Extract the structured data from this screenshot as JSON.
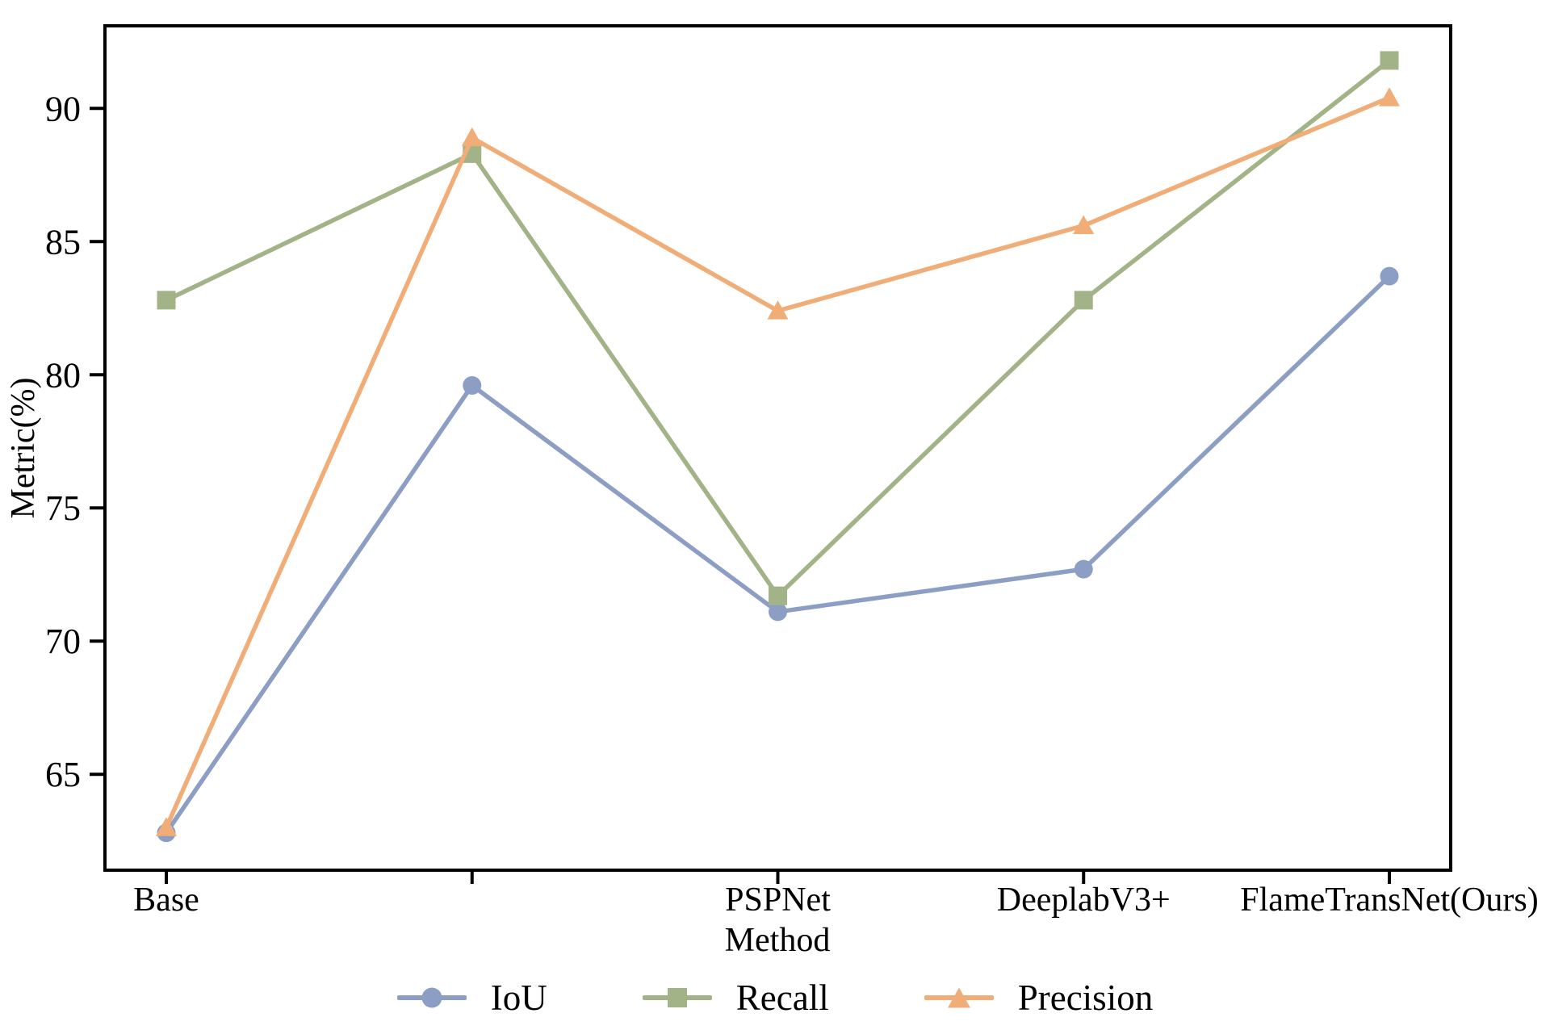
{
  "figure": {
    "background": "#ffffff"
  },
  "chart_data": {
    "type": "line",
    "title": "",
    "xlabel": "Method",
    "ylabel": "Metric(%)",
    "categories": [
      "Base",
      "",
      "PSPNet",
      "DeeplabV3+",
      "FlameTransNet(Ours)"
    ],
    "ylim": [
      61.4,
      93.1
    ],
    "yticks": [
      65,
      70,
      75,
      80,
      85,
      90
    ],
    "grid": false,
    "legend_position": "bottom-center",
    "axis_color": "#000000",
    "series": [
      {
        "name": "IoU",
        "marker": "circle",
        "color": "#8d9ec5",
        "values": [
          62.8,
          79.6,
          71.1,
          72.7,
          83.7
        ]
      },
      {
        "name": "Recall",
        "marker": "square",
        "color": "#a3b388",
        "values": [
          82.8,
          88.3,
          71.7,
          82.8,
          91.8
        ]
      },
      {
        "name": "Precision",
        "marker": "triangle",
        "color": "#f0ad78",
        "values": [
          63.0,
          88.9,
          82.4,
          85.6,
          90.4
        ]
      }
    ]
  }
}
